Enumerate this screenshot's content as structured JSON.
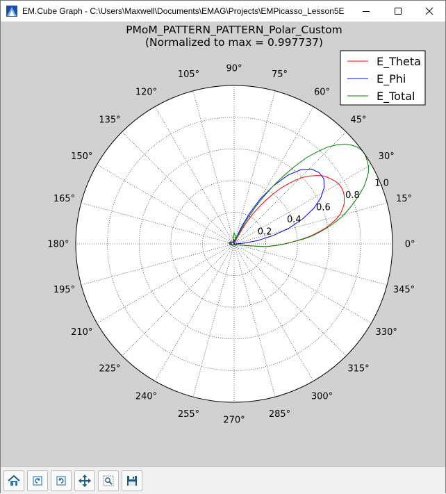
{
  "window": {
    "title": "EM.Cube Graph - C:\\Users\\Maxwell\\Documents\\EMAG\\Projects\\EMPicasso_Lesson5E",
    "minimize_icon": "minimize-icon",
    "maximize_icon": "maximize-icon",
    "close_icon": "close-icon"
  },
  "toolbar": {
    "buttons": [
      {
        "name": "home-button",
        "icon": "home-icon"
      },
      {
        "name": "back-button",
        "icon": "back-arrow-icon"
      },
      {
        "name": "forward-button",
        "icon": "forward-arrow-icon"
      },
      {
        "name": "pan-button",
        "icon": "move-arrows-icon"
      },
      {
        "name": "zoom-button",
        "icon": "zoom-rectangle-icon"
      },
      {
        "name": "save-button",
        "icon": "floppy-disk-icon"
      }
    ]
  },
  "chart_data": {
    "type": "polar-line",
    "title": "PMoM_PATTERN_PATTERN_Polar_Custom",
    "subtitle": "(Normalized to max = 0.997737)",
    "angle_unit": "degrees",
    "angle_ticks": [
      0,
      15,
      30,
      45,
      60,
      75,
      90,
      105,
      120,
      135,
      150,
      165,
      180,
      195,
      210,
      225,
      240,
      255,
      270,
      285,
      300,
      315,
      330,
      345
    ],
    "angle_tick_labels": [
      "0°",
      "15°",
      "30°",
      "45°",
      "60°",
      "75°",
      "90°",
      "105°",
      "120°",
      "135°",
      "150°",
      "165°",
      "180°",
      "195°",
      "210°",
      "225°",
      "240°",
      "255°",
      "270°",
      "285°",
      "300°",
      "315°",
      "330°",
      "345°"
    ],
    "radial_ticks": [
      0.2,
      0.4,
      0.6,
      0.8,
      1.0
    ],
    "radial_tick_labels": [
      "0.2",
      "0.4",
      "0.6",
      "0.8",
      "1.0"
    ],
    "rlim": [
      0,
      1.0
    ],
    "radial_label_angle": 22.5,
    "grid": true,
    "legend_position": "top-right",
    "series": [
      {
        "name": "E_Theta",
        "color": "#ff0000",
        "points": [
          [
            0,
            0.32
          ],
          [
            2,
            0.37
          ],
          [
            4,
            0.43
          ],
          [
            6,
            0.49
          ],
          [
            8,
            0.54
          ],
          [
            10,
            0.59
          ],
          [
            12,
            0.63
          ],
          [
            14,
            0.67
          ],
          [
            16,
            0.7
          ],
          [
            18,
            0.72
          ],
          [
            20,
            0.74
          ],
          [
            22,
            0.75
          ],
          [
            24,
            0.76
          ],
          [
            26,
            0.765
          ],
          [
            28,
            0.765
          ],
          [
            30,
            0.76
          ],
          [
            32,
            0.75
          ],
          [
            34,
            0.735
          ],
          [
            36,
            0.72
          ],
          [
            38,
            0.7
          ],
          [
            40,
            0.67
          ],
          [
            42,
            0.64
          ],
          [
            44,
            0.605
          ],
          [
            46,
            0.56
          ],
          [
            48,
            0.51
          ],
          [
            50,
            0.46
          ],
          [
            52,
            0.4
          ],
          [
            54,
            0.34
          ],
          [
            56,
            0.28
          ],
          [
            58,
            0.22
          ],
          [
            60,
            0.16
          ],
          [
            62,
            0.11
          ],
          [
            64,
            0.06
          ],
          [
            66,
            0.03
          ],
          [
            68,
            0.015
          ],
          [
            72,
            0.008
          ],
          [
            80,
            0.012
          ],
          [
            85,
            0.02
          ],
          [
            90,
            0.03
          ],
          [
            95,
            0.02
          ],
          [
            100,
            0.012
          ],
          [
            110,
            0.008
          ],
          [
            120,
            0.01
          ],
          [
            130,
            0.015
          ],
          [
            140,
            0.02
          ],
          [
            150,
            0.025
          ],
          [
            160,
            0.03
          ],
          [
            170,
            0.03
          ],
          [
            180,
            0.025
          ],
          [
            190,
            0.02
          ],
          [
            200,
            0.02
          ],
          [
            210,
            0.015
          ],
          [
            220,
            0.012
          ],
          [
            230,
            0.01
          ],
          [
            240,
            0.008
          ],
          [
            250,
            0.006
          ],
          [
            260,
            0.005
          ],
          [
            270,
            0.005
          ],
          [
            280,
            0.005
          ],
          [
            290,
            0.005
          ],
          [
            300,
            0.006
          ],
          [
            310,
            0.008
          ],
          [
            320,
            0.01
          ],
          [
            330,
            0.015
          ],
          [
            340,
            0.02
          ],
          [
            348,
            0.03
          ],
          [
            352,
            0.08
          ],
          [
            355,
            0.2
          ],
          [
            358,
            0.27
          ],
          [
            360,
            0.32
          ]
        ]
      },
      {
        "name": "E_Phi",
        "color": "#0000ff",
        "points": [
          [
            0,
            0.01
          ],
          [
            4,
            0.06
          ],
          [
            8,
            0.15
          ],
          [
            12,
            0.25
          ],
          [
            16,
            0.36
          ],
          [
            20,
            0.46
          ],
          [
            24,
            0.55
          ],
          [
            28,
            0.62
          ],
          [
            32,
            0.67
          ],
          [
            36,
            0.7
          ],
          [
            40,
            0.7
          ],
          [
            44,
            0.68
          ],
          [
            48,
            0.63
          ],
          [
            52,
            0.55
          ],
          [
            56,
            0.44
          ],
          [
            60,
            0.32
          ],
          [
            63,
            0.22
          ],
          [
            66,
            0.13
          ],
          [
            69,
            0.06
          ],
          [
            72,
            0.03
          ],
          [
            78,
            0.02
          ],
          [
            85,
            0.02
          ],
          [
            90,
            0.025
          ],
          [
            95,
            0.015
          ],
          [
            100,
            0.01
          ],
          [
            110,
            0.008
          ],
          [
            120,
            0.01
          ],
          [
            130,
            0.012
          ],
          [
            140,
            0.015
          ],
          [
            150,
            0.02
          ],
          [
            160,
            0.022
          ],
          [
            170,
            0.025
          ],
          [
            180,
            0.02
          ],
          [
            190,
            0.02
          ],
          [
            200,
            0.015
          ],
          [
            210,
            0.012
          ],
          [
            220,
            0.01
          ],
          [
            230,
            0.008
          ],
          [
            240,
            0.006
          ],
          [
            250,
            0.005
          ],
          [
            260,
            0.005
          ],
          [
            270,
            0.005
          ],
          [
            280,
            0.005
          ],
          [
            290,
            0.005
          ],
          [
            300,
            0.006
          ],
          [
            310,
            0.007
          ],
          [
            320,
            0.008
          ],
          [
            330,
            0.008
          ],
          [
            340,
            0.008
          ],
          [
            350,
            0.008
          ],
          [
            360,
            0.01
          ]
        ]
      },
      {
        "name": "E_Total",
        "color": "#008000",
        "points": [
          [
            0,
            0.32
          ],
          [
            2,
            0.37
          ],
          [
            4,
            0.44
          ],
          [
            6,
            0.5
          ],
          [
            8,
            0.55
          ],
          [
            10,
            0.6
          ],
          [
            12,
            0.65
          ],
          [
            14,
            0.7
          ],
          [
            16,
            0.74
          ],
          [
            18,
            0.78
          ],
          [
            20,
            0.82
          ],
          [
            22,
            0.86
          ],
          [
            24,
            0.9
          ],
          [
            26,
            0.93
          ],
          [
            28,
            0.96
          ],
          [
            30,
            0.98
          ],
          [
            32,
            0.99
          ],
          [
            34,
            1.0
          ],
          [
            36,
            1.0
          ],
          [
            38,
            0.99
          ],
          [
            40,
            0.97
          ],
          [
            42,
            0.94
          ],
          [
            44,
            0.9
          ],
          [
            46,
            0.85
          ],
          [
            48,
            0.78
          ],
          [
            50,
            0.71
          ],
          [
            52,
            0.62
          ],
          [
            54,
            0.53
          ],
          [
            56,
            0.44
          ],
          [
            58,
            0.35
          ],
          [
            60,
            0.27
          ],
          [
            62,
            0.19
          ],
          [
            64,
            0.12
          ],
          [
            66,
            0.07
          ],
          [
            68,
            0.04
          ],
          [
            72,
            0.03
          ],
          [
            80,
            0.04
          ],
          [
            85,
            0.06
          ],
          [
            90,
            0.07
          ],
          [
            95,
            0.05
          ],
          [
            100,
            0.03
          ],
          [
            110,
            0.015
          ],
          [
            120,
            0.012
          ],
          [
            130,
            0.015
          ],
          [
            140,
            0.02
          ],
          [
            150,
            0.025
          ],
          [
            160,
            0.03
          ],
          [
            170,
            0.035
          ],
          [
            180,
            0.03
          ],
          [
            190,
            0.025
          ],
          [
            200,
            0.02
          ],
          [
            210,
            0.015
          ],
          [
            220,
            0.012
          ],
          [
            230,
            0.01
          ],
          [
            240,
            0.008
          ],
          [
            250,
            0.007
          ],
          [
            260,
            0.006
          ],
          [
            270,
            0.006
          ],
          [
            280,
            0.006
          ],
          [
            290,
            0.006
          ],
          [
            300,
            0.007
          ],
          [
            310,
            0.008
          ],
          [
            320,
            0.01
          ],
          [
            330,
            0.015
          ],
          [
            340,
            0.02
          ],
          [
            348,
            0.03
          ],
          [
            352,
            0.08
          ],
          [
            355,
            0.2
          ],
          [
            358,
            0.27
          ],
          [
            360,
            0.32
          ]
        ]
      }
    ]
  }
}
